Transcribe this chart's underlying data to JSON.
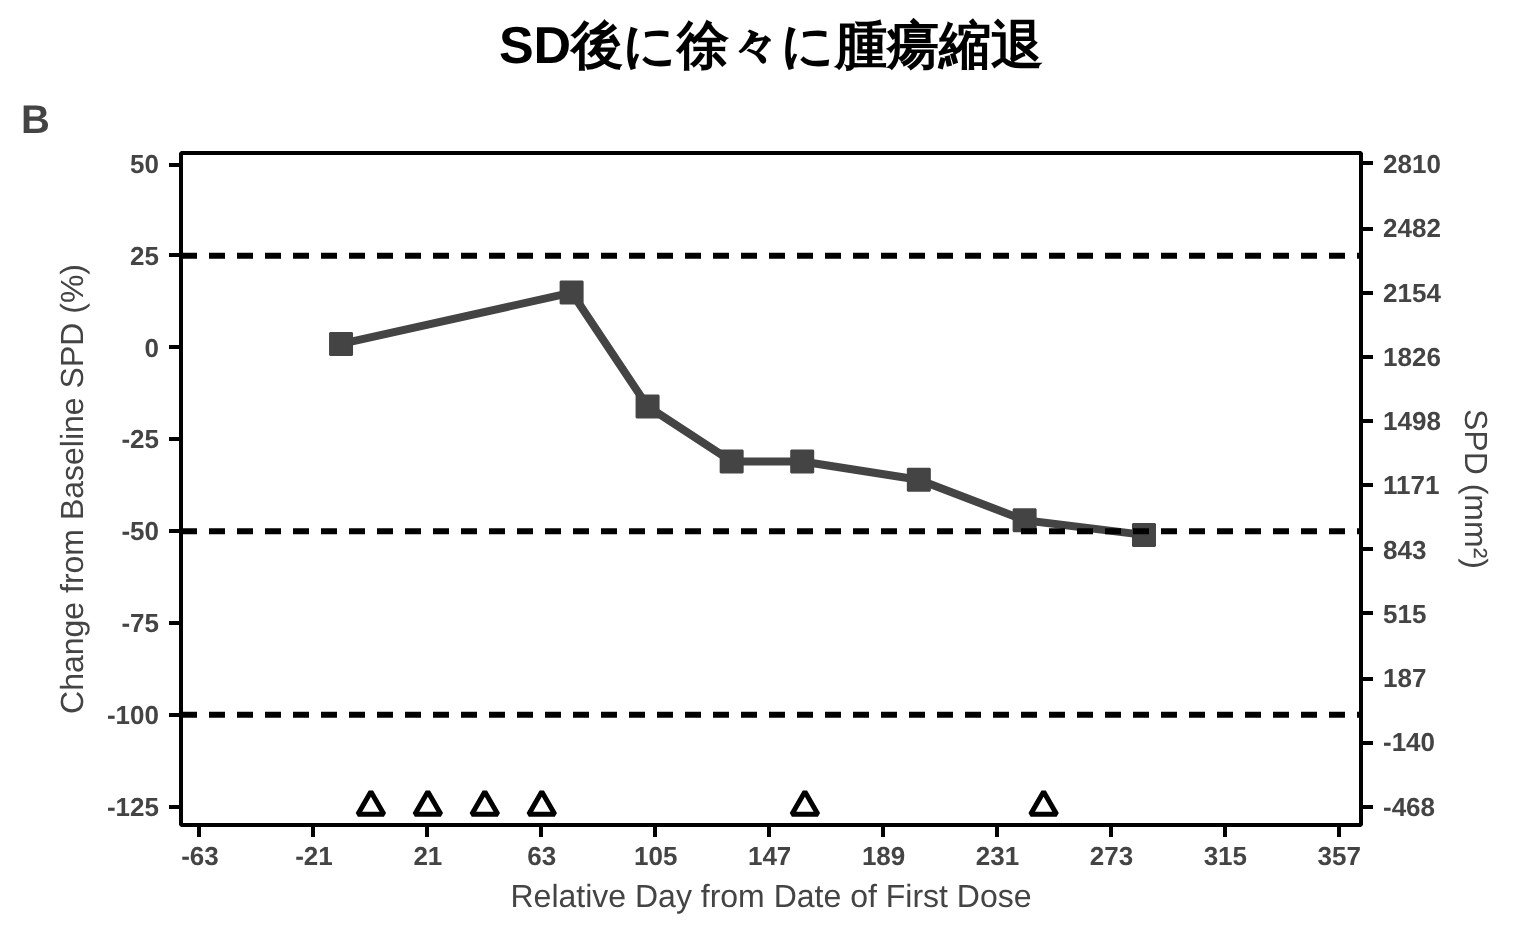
{
  "chart_data": {
    "type": "line",
    "title": "SD後に徐々に腫瘍縮退",
    "xlabel": "Relative Day from Date of First Dose",
    "ylabel": "Change from Baseline SPD (%)",
    "y2label": "SPD (mm²)",
    "annotations": [
      "B"
    ],
    "series": [
      {
        "color": "#444444",
        "marker": "square",
        "x": [
          -11,
          74,
          102,
          133,
          159,
          202,
          241,
          285
        ],
        "values": [
          1,
          15,
          -16,
          -31,
          -31,
          -36,
          -47,
          -51
        ]
      },
      {
        "type": "scatter",
        "color": "#000000",
        "marker": "triangle",
        "x": [
          0,
          21,
          42,
          63,
          160,
          248
        ],
        "values": [
          -125,
          -125,
          -125,
          -125,
          -125,
          -125
        ]
      }
    ],
    "xlim": [
      -70,
      365
    ],
    "xticks": [
      -63,
      -21,
      21,
      63,
      105,
      147,
      189,
      231,
      273,
      315,
      357
    ],
    "ylim": [
      -130,
      53
    ],
    "yticks": [
      50,
      25,
      0,
      -25,
      -50,
      -75,
      -100,
      -125
    ],
    "y2lim": [
      -562,
      2866
    ],
    "y2ticks": [
      2810,
      2482,
      2154,
      1826,
      1498,
      1171,
      843,
      515,
      187,
      -140,
      -468
    ],
    "ref_lines": [
      {
        "axis": "y",
        "value": 25,
        "color": "#000000",
        "line_style": "dashed"
      },
      {
        "axis": "y",
        "value": -50,
        "color": "#000000",
        "line_style": "dashed"
      },
      {
        "axis": "y",
        "value": -100,
        "color": "#000000",
        "line_style": "dashed"
      }
    ],
    "grid": false
  }
}
